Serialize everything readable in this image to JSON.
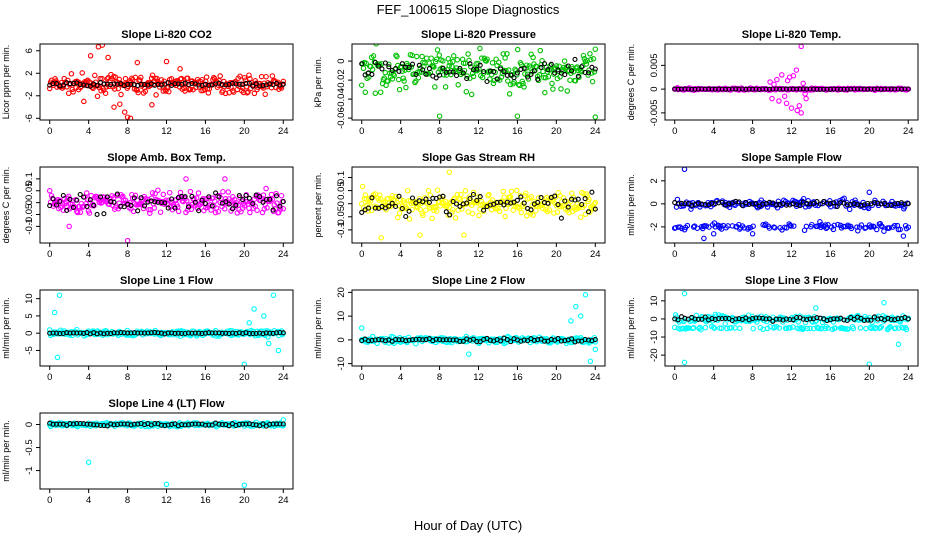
{
  "figure": {
    "title": "FEF_100615  Slope Diagnostics",
    "xlabel": "Hour of Day (UTC)"
  },
  "chart_data": [
    {
      "type": "scatter",
      "title": "Slope Li-820 CO2",
      "ylabel": "Licor ppm per min.",
      "xlim": [
        -1,
        25
      ],
      "ylim": [
        -6.3,
        7.2
      ],
      "yticks": [
        -6,
        -2,
        2,
        6
      ],
      "xticks": [
        0,
        4,
        8,
        12,
        16,
        20,
        24
      ],
      "color": "#ff0000",
      "center": 0,
      "spread": 1.4,
      "outliers": [
        [
          4.2,
          5.1
        ],
        [
          5,
          6.7
        ],
        [
          5.4,
          7
        ],
        [
          6,
          4.8
        ],
        [
          6.6,
          -4
        ],
        [
          7.2,
          -3.5
        ],
        [
          8,
          -5.8
        ],
        [
          8.3,
          -6
        ],
        [
          9,
          3.9
        ],
        [
          10.5,
          -3.6
        ],
        [
          12,
          4.1
        ],
        [
          13.4,
          2.8
        ],
        [
          7.7,
          -4.9
        ],
        [
          3.5,
          -3
        ]
      ],
      "black_spread": 0.3
    },
    {
      "type": "scatter",
      "title": "Slope Li-820 Pressure",
      "ylabel": "kPa per min.",
      "xlim": [
        -1,
        25
      ],
      "ylim": [
        -0.062,
        0.018
      ],
      "yticks": [
        -0.06,
        -0.04,
        -0.02,
        0
      ],
      "xticks": [
        0,
        4,
        8,
        12,
        16,
        20,
        24
      ],
      "color": "#00c000",
      "center": -0.01,
      "spread": 0.02,
      "outliers": [
        [
          8,
          -0.058
        ],
        [
          16,
          -0.058
        ],
        [
          24,
          -0.059
        ]
      ],
      "black_spread": 0.01
    },
    {
      "type": "scatter",
      "title": "Slope Li-820 Temp.",
      "ylabel": "degrees C per min.",
      "xlim": [
        -1,
        25
      ],
      "ylim": [
        -0.0065,
        0.0095
      ],
      "yticks": [
        -0.005,
        0,
        0.005
      ],
      "xticks": [
        0,
        4,
        8,
        12,
        16,
        20,
        24
      ],
      "color": "#ff00ff",
      "center": 0,
      "spread": 0.0002,
      "outliers": [
        [
          13,
          0.009
        ],
        [
          12.5,
          0.004
        ],
        [
          13,
          -0.005
        ],
        [
          11.5,
          -0.003
        ],
        [
          10.5,
          0.002
        ],
        [
          12,
          -0.004
        ],
        [
          13.5,
          -0.002
        ],
        [
          11,
          0.003
        ],
        [
          10,
          -0.002
        ],
        [
          9.8,
          0.0015
        ],
        [
          11.8,
          0.0025
        ],
        [
          12.8,
          -0.0035
        ],
        [
          10.7,
          -0.0025
        ],
        [
          12.2,
          0.0028
        ],
        [
          13.2,
          0.0012
        ],
        [
          11.3,
          -0.0015
        ],
        [
          12.6,
          -0.0045
        ],
        [
          10.2,
          0.001
        ],
        [
          13.4,
          -0.001
        ],
        [
          11.6,
          0.0018
        ]
      ],
      "black_spread": 5e-05
    },
    {
      "type": "scatter",
      "title": "Slope Amb. Box Temp.",
      "ylabel": "degrees C per min.",
      "xlim": [
        -1,
        25
      ],
      "ylim": [
        -0.17,
        0.15
      ],
      "yticks": [
        -0.1,
        -0.05,
        0,
        0.05,
        0.1
      ],
      "xticks": [
        0,
        4,
        8,
        12,
        16,
        20,
        24
      ],
      "color": "#ff00ff",
      "center": 0,
      "spread": 0.045,
      "outliers": [
        [
          8,
          -0.16
        ],
        [
          14,
          0.1
        ],
        [
          2,
          -0.1
        ],
        [
          18,
          0.1
        ]
      ],
      "black_spread": 0.04
    },
    {
      "type": "scatter",
      "title": "Slope Gas Stream RH",
      "ylabel": "percent per min.",
      "xlim": [
        -1,
        25
      ],
      "ylim": [
        -0.15,
        0.14
      ],
      "yticks": [
        -0.1,
        -0.05,
        0,
        0.05,
        0.1
      ],
      "xticks": [
        0,
        4,
        8,
        12,
        16,
        20,
        24
      ],
      "color": "#ffff00",
      "center": 0,
      "spread": 0.05,
      "outliers": [
        [
          9,
          0.12
        ],
        [
          2,
          -0.13
        ],
        [
          6,
          -0.12
        ],
        [
          10.5,
          -0.12
        ]
      ],
      "black_spread": 0.04
    },
    {
      "type": "scatter",
      "title": "Slope Sample Flow",
      "ylabel": "ml/min per min.",
      "xlim": [
        -1,
        25
      ],
      "ylim": [
        -3.4,
        3.2
      ],
      "yticks": [
        -2,
        0,
        2
      ],
      "xticks": [
        0,
        4,
        8,
        12,
        16,
        20,
        24
      ],
      "color": "#0000ff",
      "center": 0,
      "spread": 0.4,
      "outliers": [
        [
          1,
          3
        ],
        [
          3,
          -3
        ],
        [
          4,
          -2.6
        ],
        [
          23.5,
          -2.8
        ],
        [
          8,
          -2.6
        ],
        [
          20,
          1
        ]
      ],
      "black_spread": 0.2,
      "band": -2
    },
    {
      "type": "scatter",
      "title": "Slope Line 1 Flow",
      "ylabel": "ml/min per min.",
      "xlim": [
        -1,
        25
      ],
      "ylim": [
        -9.5,
        12.5
      ],
      "yticks": [
        -5,
        0,
        5,
        10
      ],
      "xticks": [
        0,
        4,
        8,
        12,
        16,
        20,
        24
      ],
      "color": "#00ffff",
      "center": 0,
      "spread": 0.8,
      "outliers": [
        [
          0.5,
          6
        ],
        [
          1,
          11
        ],
        [
          0.8,
          -7
        ],
        [
          20,
          -9
        ],
        [
          21,
          7
        ],
        [
          22,
          5
        ],
        [
          23,
          11
        ],
        [
          23.5,
          -5
        ],
        [
          20.5,
          3
        ],
        [
          22.5,
          -3
        ]
      ],
      "black_spread": 0.2
    },
    {
      "type": "scatter",
      "title": "Slope Line 2 Flow",
      "ylabel": "ml/min per min.",
      "xlim": [
        -1,
        25
      ],
      "ylim": [
        -11,
        21
      ],
      "yticks": [
        -10,
        0,
        10,
        20
      ],
      "xticks": [
        0,
        4,
        8,
        12,
        16,
        20,
        24
      ],
      "color": "#00ffff",
      "center": 0,
      "spread": 1.2,
      "outliers": [
        [
          22,
          14
        ],
        [
          23,
          19
        ],
        [
          23.5,
          -9
        ],
        [
          22.5,
          10
        ],
        [
          24,
          -4
        ],
        [
          11,
          -6
        ],
        [
          0,
          5
        ],
        [
          21.5,
          8
        ]
      ],
      "black_spread": 0.8
    },
    {
      "type": "scatter",
      "title": "Slope Line 3 Flow",
      "ylabel": "ml/min per min.",
      "xlim": [
        -1,
        25
      ],
      "ylim": [
        -26,
        16
      ],
      "yticks": [
        -20,
        -10,
        0,
        10
      ],
      "xticks": [
        0,
        4,
        8,
        12,
        16,
        20,
        24
      ],
      "color": "#00ffff",
      "center": 0,
      "spread": 2,
      "outliers": [
        [
          1,
          14
        ],
        [
          1,
          -24
        ],
        [
          20,
          -25
        ],
        [
          21.5,
          9
        ],
        [
          14.5,
          6
        ],
        [
          23,
          -14
        ]
      ],
      "black_spread": 1,
      "band": -5
    },
    {
      "type": "scatter",
      "title": "Slope Line 4 (LT) Flow",
      "ylabel": "ml/min per min.",
      "xlim": [
        -1,
        25
      ],
      "ylim": [
        -1.4,
        0.25
      ],
      "yticks": [
        -1,
        -0.5,
        0
      ],
      "xticks": [
        0,
        4,
        8,
        12,
        16,
        20,
        24
      ],
      "color": "#00ffff",
      "center": 0,
      "spread": 0.04,
      "outliers": [
        [
          4,
          -0.82
        ],
        [
          12,
          -1.3
        ],
        [
          20,
          -1.32
        ],
        [
          24,
          0.1
        ]
      ],
      "black_spread": 0.03
    }
  ]
}
